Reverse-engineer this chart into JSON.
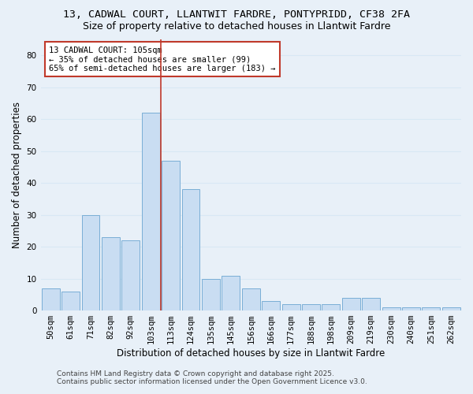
{
  "title1": "13, CADWAL COURT, LLANTWIT FARDRE, PONTYPRIDD, CF38 2FA",
  "title2": "Size of property relative to detached houses in Llantwit Fardre",
  "xlabel": "Distribution of detached houses by size in Llantwit Fardre",
  "ylabel": "Number of detached properties",
  "categories": [
    "50sqm",
    "61sqm",
    "71sqm",
    "82sqm",
    "92sqm",
    "103sqm",
    "113sqm",
    "124sqm",
    "135sqm",
    "145sqm",
    "156sqm",
    "166sqm",
    "177sqm",
    "188sqm",
    "198sqm",
    "209sqm",
    "219sqm",
    "230sqm",
    "240sqm",
    "251sqm",
    "262sqm"
  ],
  "values": [
    7,
    6,
    30,
    23,
    22,
    62,
    47,
    38,
    10,
    11,
    7,
    3,
    2,
    2,
    2,
    4,
    4,
    1,
    1,
    1,
    1
  ],
  "bar_color": "#c9ddf2",
  "bar_edge_color": "#7aaed6",
  "vertical_line_color": "#c0392b",
  "annotation_line1": "13 CADWAL COURT: 105sqm",
  "annotation_line2": "← 35% of detached houses are smaller (99)",
  "annotation_line3": "65% of semi-detached houses are larger (183) →",
  "annotation_box_color": "#ffffff",
  "annotation_box_edge": "#c0392b",
  "ylim": [
    0,
    85
  ],
  "yticks": [
    0,
    10,
    20,
    30,
    40,
    50,
    60,
    70,
    80
  ],
  "grid_color": "#d8e8f5",
  "bg_color": "#e8f0f8",
  "fig_bg_color": "#e8f0f8",
  "footer_line1": "Contains HM Land Registry data © Crown copyright and database right 2025.",
  "footer_line2": "Contains public sector information licensed under the Open Government Licence v3.0.",
  "title1_fontsize": 9.5,
  "title2_fontsize": 9,
  "axis_label_fontsize": 8.5,
  "tick_fontsize": 7.5,
  "annotation_fontsize": 7.5,
  "footer_fontsize": 6.5
}
